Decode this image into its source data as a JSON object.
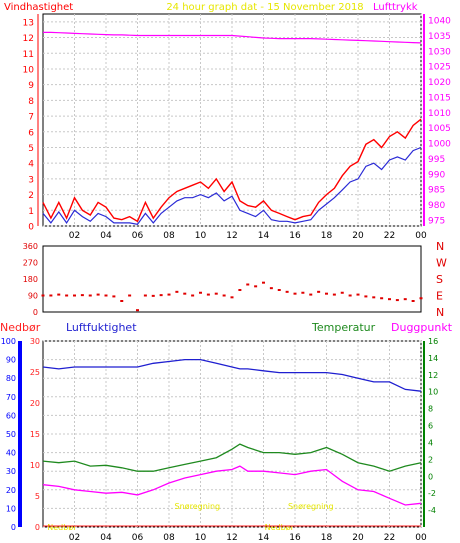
{
  "colors": {
    "wind": "#ff0000",
    "gust": "#e60000",
    "pressure": "#ff00ff",
    "windavg": "#2b2bd6",
    "dir": "#e00000",
    "humidity": "#1f1fd0",
    "temp": "#1f8a1f",
    "dew": "#ff00ff",
    "precip": "#ff2020",
    "title": "#e6e600",
    "snow": "#e6e600",
    "nedbor_axis": "#0000ff",
    "temp_axis": "#008000"
  },
  "chart_data": [
    {
      "type": "line",
      "name": "wind-pressure",
      "title": "24 hour graph dat - 15 November 2018",
      "left_label": "Vindhastighet",
      "right_label": "Lufttrykk",
      "x_ticks": [
        "02",
        "04",
        "06",
        "08",
        "10",
        "12",
        "14",
        "16",
        "18",
        "20",
        "22",
        "00"
      ],
      "y_left_ticks": [
        "0",
        "1",
        "2",
        "3",
        "4",
        "5",
        "6",
        "7",
        "8",
        "9",
        "10",
        "11",
        "12",
        "13"
      ],
      "y_right_ticks": [
        "975",
        "980",
        "985",
        "990",
        "995",
        "1000",
        "1005",
        "1010",
        "1015",
        "1020",
        "1025",
        "1030",
        "1035",
        "1040"
      ],
      "ylim_left": [
        0,
        13.5
      ],
      "ylim_right": [
        973,
        1042
      ],
      "x_hours": [
        0.0,
        0.5,
        1.0,
        1.5,
        2.0,
        2.5,
        3.0,
        3.5,
        4.0,
        4.5,
        5.0,
        5.5,
        6.0,
        6.5,
        7.0,
        7.5,
        8.0,
        8.5,
        9.0,
        9.5,
        10.0,
        10.5,
        11.0,
        11.5,
        12.0,
        12.5,
        13.0,
        13.5,
        14.0,
        14.5,
        15.0,
        15.5,
        16.0,
        16.5,
        17.0,
        17.5,
        18.0,
        18.5,
        19.0,
        19.5,
        20.0,
        20.5,
        21.0,
        21.5,
        22.0,
        22.5,
        23.0,
        23.5,
        24.0
      ],
      "series": [
        {
          "name": "wind_gust",
          "color_key": "wind",
          "values": [
            1.5,
            0.5,
            1.5,
            0.5,
            1.8,
            1.0,
            0.7,
            1.5,
            1.2,
            0.5,
            0.4,
            0.6,
            0.3,
            1.5,
            0.5,
            1.2,
            1.8,
            2.2,
            2.4,
            2.6,
            2.8,
            2.4,
            3.0,
            2.2,
            2.8,
            1.6,
            1.3,
            1.2,
            1.6,
            1.0,
            0.8,
            0.6,
            0.4,
            0.6,
            0.7,
            1.5,
            2.0,
            2.4,
            3.2,
            3.8,
            4.1,
            5.2,
            5.5,
            5.0,
            5.7,
            6.0,
            5.6,
            6.4,
            6.8
          ]
        },
        {
          "name": "wind_avg",
          "color_key": "windavg",
          "values": [
            0.8,
            0.2,
            0.9,
            0.2,
            1.0,
            0.6,
            0.3,
            0.8,
            0.6,
            0.2,
            0.2,
            0.2,
            0.1,
            0.8,
            0.2,
            0.8,
            1.2,
            1.6,
            1.8,
            1.8,
            2.0,
            1.8,
            2.1,
            1.6,
            1.9,
            1.0,
            0.8,
            0.6,
            1.0,
            0.4,
            0.3,
            0.3,
            0.2,
            0.3,
            0.4,
            1.0,
            1.4,
            1.8,
            2.3,
            2.8,
            3.0,
            3.8,
            4.0,
            3.6,
            4.2,
            4.4,
            4.2,
            4.8,
            5.0
          ]
        },
        {
          "name": "pressure",
          "color_key": "pressure",
          "values": [
            1036.0,
            1036.0,
            1035.9,
            1035.8,
            1035.7,
            1035.6,
            1035.5,
            1035.4,
            1035.3,
            1035.2,
            1035.2,
            1035.1,
            1035.0,
            1035.0,
            1035.0,
            1035.0,
            1035.0,
            1035.0,
            1035.0,
            1035.0,
            1035.0,
            1035.0,
            1035.0,
            1035.0,
            1035.0,
            1034.8,
            1034.6,
            1034.4,
            1034.2,
            1034.1,
            1034.0,
            1034.0,
            1034.0,
            1034.0,
            1034.0,
            1033.9,
            1033.8,
            1033.7,
            1033.6,
            1033.5,
            1033.4,
            1033.3,
            1033.2,
            1033.1,
            1033.0,
            1032.9,
            1032.8,
            1032.7,
            1032.6
          ]
        }
      ]
    },
    {
      "type": "scatter",
      "name": "wind-direction",
      "y_left_ticks": [
        "0",
        "90",
        "180",
        "270",
        "360"
      ],
      "y_right_labels": [
        "N",
        "W",
        "S",
        "E",
        "N"
      ],
      "ylim": [
        0,
        360
      ],
      "x_hours": [
        0.0,
        0.5,
        1.0,
        1.5,
        2.0,
        2.5,
        3.0,
        3.5,
        4.0,
        4.5,
        5.0,
        5.5,
        6.0,
        6.5,
        7.0,
        7.5,
        8.0,
        8.5,
        9.0,
        9.5,
        10.0,
        10.5,
        11.0,
        11.5,
        12.0,
        12.5,
        13.0,
        13.5,
        14.0,
        14.5,
        15.0,
        15.5,
        16.0,
        16.5,
        17.0,
        17.5,
        18.0,
        18.5,
        19.0,
        19.5,
        20.0,
        20.5,
        21.0,
        21.5,
        22.0,
        22.5,
        23.0,
        23.5,
        24.0
      ],
      "values": [
        90,
        90,
        95,
        90,
        90,
        92,
        90,
        95,
        90,
        85,
        60,
        90,
        10,
        90,
        88,
        92,
        95,
        110,
        100,
        90,
        105,
        95,
        100,
        90,
        80,
        120,
        150,
        140,
        160,
        130,
        120,
        110,
        100,
        105,
        95,
        110,
        100,
        95,
        105,
        90,
        95,
        85,
        80,
        75,
        70,
        65,
        70,
        60,
        75
      ]
    },
    {
      "type": "line",
      "name": "humidity-temperature",
      "legend": {
        "precip": "Nedbør",
        "humidity": "Luftfuktighet",
        "temp": "Temperatur",
        "dew": "Duggpunkt"
      },
      "y_nedbor_ticks": [
        "0",
        "10",
        "20",
        "30",
        "40",
        "50",
        "60",
        "70",
        "80",
        "90",
        "100"
      ],
      "y_humidity_ticks": [
        "0",
        "5",
        "10",
        "15",
        "20",
        "25",
        "30"
      ],
      "y_temp_ticks": [
        "-4",
        "-2",
        "0",
        "2",
        "4",
        "6",
        "8",
        "10",
        "12",
        "14",
        "16"
      ],
      "x_ticks": [
        "02",
        "04",
        "06",
        "08",
        "10",
        "12",
        "14",
        "16",
        "18",
        "20",
        "22",
        "00"
      ],
      "ylim_humidity": [
        0,
        100
      ],
      "ylim_temp": [
        -6,
        16
      ],
      "x_hours": [
        0.0,
        1.0,
        2.0,
        3.0,
        4.0,
        5.0,
        6.0,
        7.0,
        8.0,
        9.0,
        10.0,
        11.0,
        12.0,
        12.5,
        13.0,
        14.0,
        15.0,
        16.0,
        17.0,
        18.0,
        19.0,
        20.0,
        21.0,
        22.0,
        23.0,
        24.0
      ],
      "series": [
        {
          "name": "humidity",
          "color_key": "humidity",
          "values": [
            86,
            85,
            86,
            86,
            86,
            86,
            86,
            88,
            89,
            90,
            90,
            88,
            86,
            85,
            85,
            84,
            83,
            83,
            83,
            83,
            82,
            80,
            78,
            78,
            74,
            73
          ]
        },
        {
          "name": "temperature",
          "color_key": "temp",
          "values": [
            1.8,
            1.6,
            1.8,
            1.2,
            1.3,
            1.0,
            0.6,
            0.6,
            1.0,
            1.4,
            1.8,
            2.2,
            3.2,
            3.8,
            3.4,
            2.8,
            2.8,
            2.6,
            2.8,
            3.4,
            2.6,
            1.6,
            1.2,
            0.6,
            1.2,
            1.6
          ]
        },
        {
          "name": "dewpoint",
          "color_key": "dew",
          "values": [
            -1.0,
            -1.2,
            -1.6,
            -1.8,
            -2.0,
            -1.9,
            -2.2,
            -1.6,
            -0.8,
            -0.2,
            0.2,
            0.6,
            0.8,
            1.2,
            0.6,
            0.6,
            0.4,
            0.2,
            0.6,
            0.8,
            -0.6,
            -1.6,
            -1.8,
            -2.6,
            -3.4,
            -3.2
          ]
        }
      ],
      "annotations": [
        {
          "text": "Snøregning",
          "hour": 9.8,
          "level": -3.5
        },
        {
          "text": "Snøregning",
          "hour": 17.0,
          "level": -3.5
        },
        {
          "text": "Nedbør",
          "hour": 1.2,
          "level": -6.0
        },
        {
          "text": "Nedbør",
          "hour": 15.0,
          "level": -6.0
        }
      ]
    }
  ]
}
